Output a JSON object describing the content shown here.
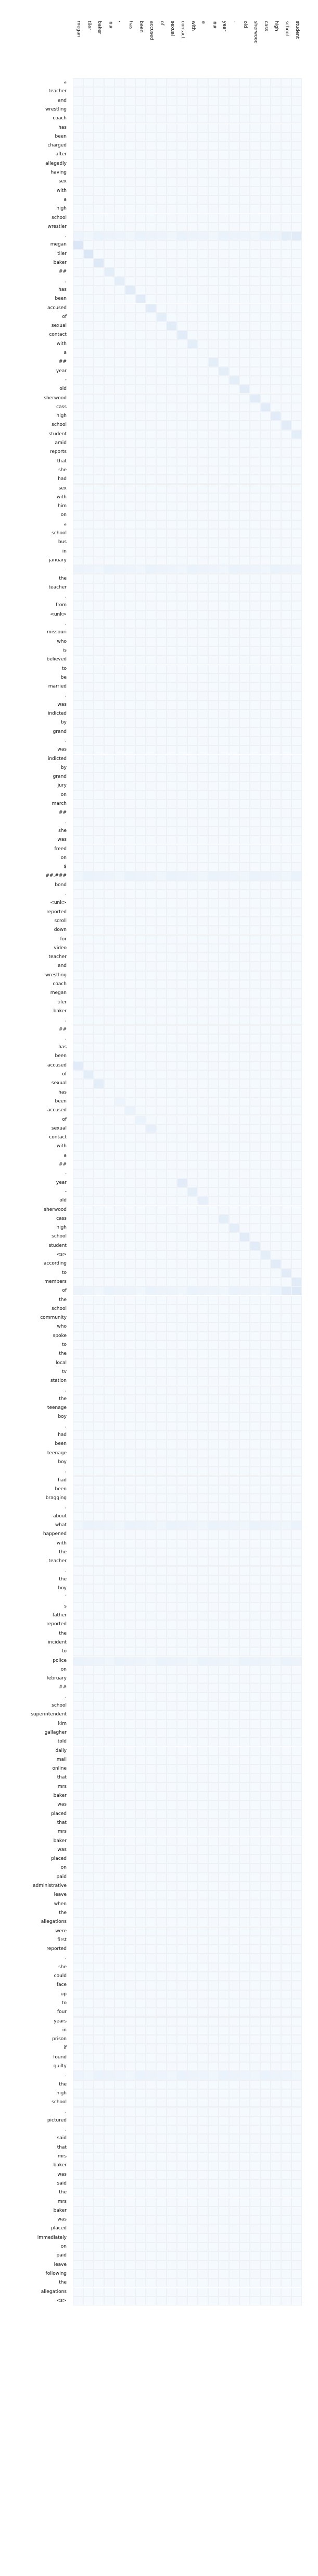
{
  "chart_data": {
    "type": "heatmap",
    "title": "",
    "xlabel": "",
    "ylabel": "",
    "colors": {
      "low": "#f7fbff",
      "high": "#cfe0f3"
    },
    "columns": [
      "megan",
      "tiler",
      "baker",
      "##",
      ",",
      "has",
      "been",
      "accused",
      "of",
      "sexual",
      "contact",
      "with",
      "a",
      "##",
      "year",
      "-",
      "old",
      "sherwood",
      "cass",
      "high",
      "school",
      "student"
    ],
    "rows": [
      "a",
      "teacher",
      "and",
      "wrestling",
      "coach",
      "has",
      "been",
      "charged",
      "after",
      "allegedly",
      "having",
      "sex",
      "with",
      "a",
      "high",
      "school",
      "wrestler",
      ".",
      "megan",
      "tiler",
      "baker",
      "##",
      ",",
      "has",
      "been",
      "accused",
      "of",
      "sexual",
      "contact",
      "with",
      "a",
      "##",
      "year",
      "-",
      "old",
      "sherwood",
      "cass",
      "high",
      "school",
      "student",
      "amid",
      "reports",
      "that",
      "she",
      "had",
      "sex",
      "with",
      "him",
      "on",
      "a",
      "school",
      "bus",
      "in",
      "january",
      ".",
      "the",
      "teacher",
      ",",
      "from",
      "<unk>",
      ",",
      "missouri",
      "who",
      "is",
      "believed",
      "to",
      "be",
      "married",
      ",",
      "was",
      "indicted",
      "by",
      "grand",
      ",",
      "was",
      "indicted",
      "by",
      "grand",
      "jury",
      "on",
      "march",
      "##",
      ".",
      "she",
      "was",
      "freed",
      "on",
      "$",
      "##,###",
      "bond",
      ".",
      "<unk>",
      "reported",
      "scroll",
      "down",
      "for",
      "video",
      "teacher",
      "and",
      "wrestling",
      "coach",
      "megan",
      "tiler",
      "baker",
      ",",
      "##",
      ",",
      "has",
      "been",
      "accused",
      "of",
      "sexual",
      "has",
      "been",
      "accused",
      "of",
      "sexual",
      "contact",
      "with",
      "a",
      "##",
      "-",
      "year",
      "-",
      "old",
      "sherwood",
      "cass",
      "high",
      "school",
      "student",
      "<s>",
      "according",
      "to",
      "members",
      "of",
      "the",
      "school",
      "community",
      "who",
      "spoke",
      "to",
      "the",
      "local",
      "tv",
      "station",
      ",",
      "the",
      "teenage",
      "boy",
      ",",
      "had",
      "been",
      "teenage",
      "boy",
      ",",
      "had",
      "been",
      "bragging",
      ",",
      "about",
      "what",
      "happened",
      "with",
      "the",
      "teacher",
      ".",
      "the",
      "boy",
      "'",
      "s",
      "father",
      "reported",
      "the",
      "incident",
      "to",
      "police",
      "on",
      "february",
      "##",
      ".",
      "school",
      "superintendent",
      "kim",
      "gallagher",
      "told",
      "daily",
      "mail",
      "online",
      "that",
      "mrs",
      "baker",
      "was",
      "placed",
      "that",
      "mrs",
      "baker",
      "was",
      "placed",
      "on",
      "paid",
      "administrative",
      "leave",
      "when",
      "the",
      "allegations",
      "were",
      "first",
      "reported",
      ".",
      "she",
      "could",
      "face",
      "up",
      "to",
      "four",
      "years",
      "in",
      "prison",
      "if",
      "found",
      "guilty",
      ".",
      "the",
      "high",
      "school",
      ",",
      "pictured",
      ",",
      "said",
      "that",
      "mrs",
      "baker",
      "was",
      "said",
      "the",
      "mrs",
      "baker",
      "was",
      "placed",
      "immediately",
      "on",
      "paid",
      "leave",
      "following",
      "the",
      "allegations",
      "<s>"
    ],
    "strong": [
      [
        18,
        0,
        0.45
      ],
      [
        19,
        1,
        0.45
      ],
      [
        20,
        2,
        0.4
      ],
      [
        21,
        3,
        0.3
      ],
      [
        22,
        4,
        0.3
      ],
      [
        23,
        5,
        0.35
      ],
      [
        24,
        6,
        0.35
      ],
      [
        25,
        7,
        0.35
      ],
      [
        26,
        8,
        0.3
      ],
      [
        27,
        9,
        0.35
      ],
      [
        28,
        10,
        0.35
      ],
      [
        29,
        11,
        0.3
      ],
      [
        31,
        13,
        0.3
      ],
      [
        32,
        14,
        0.3
      ],
      [
        33,
        15,
        0.3
      ],
      [
        34,
        16,
        0.35
      ],
      [
        35,
        17,
        0.35
      ],
      [
        36,
        18,
        0.35
      ],
      [
        37,
        19,
        0.35
      ],
      [
        38,
        20,
        0.35
      ],
      [
        39,
        21,
        0.3
      ],
      [
        109,
        0,
        0.35
      ],
      [
        110,
        1,
        0.3
      ],
      [
        111,
        2,
        0.3
      ],
      [
        113,
        4,
        0.15
      ],
      [
        114,
        5,
        0.2
      ],
      [
        115,
        6,
        0.2
      ],
      [
        116,
        7,
        0.25
      ],
      [
        122,
        10,
        0.35
      ],
      [
        123,
        11,
        0.3
      ],
      [
        124,
        12,
        0.25
      ],
      [
        126,
        14,
        0.3
      ],
      [
        127,
        15,
        0.3
      ],
      [
        128,
        16,
        0.35
      ],
      [
        129,
        17,
        0.35
      ],
      [
        130,
        18,
        0.3
      ],
      [
        131,
        19,
        0.35
      ],
      [
        132,
        20,
        0.35
      ],
      [
        133,
        21,
        0.35
      ],
      [
        134,
        21,
        0.4
      ],
      [
        134,
        20,
        0.35
      ],
      [
        17,
        21,
        0.35
      ],
      [
        17,
        20,
        0.3
      ]
    ],
    "bands": [
      17,
      54,
      88,
      134,
      160,
      175,
      221,
      269
    ]
  }
}
